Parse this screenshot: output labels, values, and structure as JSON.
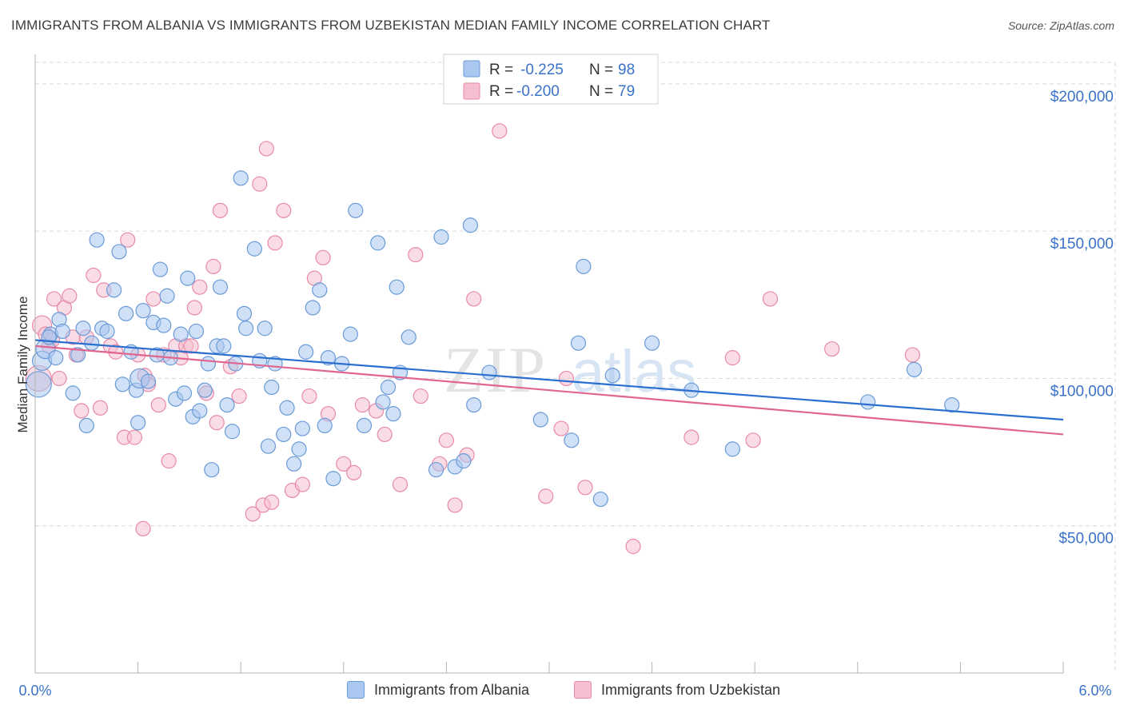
{
  "title": "IMMIGRANTS FROM ALBANIA VS IMMIGRANTS FROM UZBEKISTAN MEDIAN FAMILY INCOME CORRELATION CHART",
  "source": "Source: ZipAtlas.com",
  "watermark": {
    "zip": "ZIP",
    "atlas": "atlas"
  },
  "colors": {
    "albania_fill": "#a9c7ef",
    "albania_stroke": "#6a9bd8",
    "albania_line": "#2a6fcf",
    "uzbekistan_fill": "#f5bfd0",
    "uzbekistan_stroke": "#e88aa8",
    "uzbekistan_line": "#e0668f",
    "axis_label": "#3a72c9",
    "grid": "#d9d9d9"
  },
  "legend_top": {
    "rows": [
      {
        "r_label": "R =",
        "r_value": "-0.225",
        "n_label": "N =",
        "n_value": "98"
      },
      {
        "r_label": "R =",
        "r_value": "-0.200",
        "n_label": "N =",
        "n_value": "79"
      }
    ]
  },
  "legend_bottom": [
    "Immigrants from Albania",
    "Immigrants from Uzbekistan"
  ],
  "chart_data": {
    "type": "scatter",
    "title": "IMMIGRANTS FROM ALBANIA VS IMMIGRANTS FROM UZBEKISTAN MEDIAN FAMILY INCOME CORRELATION CHART",
    "xlabel": "",
    "ylabel": "Median Family Income",
    "xlim": [
      0,
      6
    ],
    "ylim": [
      0,
      210000
    ],
    "x_tick_labels": [
      "0.0%",
      "6.0%"
    ],
    "y_ticks": [
      50000,
      100000,
      150000,
      200000
    ],
    "y_tick_labels": [
      "$50,000",
      "$100,000",
      "$150,000",
      "$200,000"
    ],
    "grid": true,
    "legend_position": "top-center",
    "series": [
      {
        "name": "Immigrants from Albania",
        "r": -0.225,
        "n": 98,
        "trend": {
          "x": [
            0,
            6
          ],
          "y": [
            113000,
            86000
          ]
        },
        "points": [
          [
            0.02,
            98000
          ],
          [
            0.04,
            106000
          ],
          [
            0.06,
            110000
          ],
          [
            0.09,
            115000
          ],
          [
            0.12,
            107000
          ],
          [
            0.14,
            120000
          ],
          [
            0.16,
            116000
          ],
          [
            0.22,
            95000
          ],
          [
            0.25,
            108000
          ],
          [
            0.28,
            117000
          ],
          [
            0.3,
            84000
          ],
          [
            0.33,
            112000
          ],
          [
            0.36,
            147000
          ],
          [
            0.39,
            117000
          ],
          [
            0.42,
            116000
          ],
          [
            0.46,
            130000
          ],
          [
            0.49,
            143000
          ],
          [
            0.51,
            98000
          ],
          [
            0.53,
            122000
          ],
          [
            0.56,
            109000
          ],
          [
            0.59,
            96000
          ],
          [
            0.6,
            85000
          ],
          [
            0.61,
            100000
          ],
          [
            0.63,
            123000
          ],
          [
            0.66,
            99000
          ],
          [
            0.69,
            119000
          ],
          [
            0.71,
            108000
          ],
          [
            0.73,
            137000
          ],
          [
            0.75,
            118000
          ],
          [
            0.77,
            128000
          ],
          [
            0.79,
            107000
          ],
          [
            0.82,
            93000
          ],
          [
            0.85,
            115000
          ],
          [
            0.87,
            95000
          ],
          [
            0.89,
            134000
          ],
          [
            0.92,
            87000
          ],
          [
            0.94,
            116000
          ],
          [
            0.96,
            89000
          ],
          [
            0.99,
            96000
          ],
          [
            1.01,
            105000
          ],
          [
            1.03,
            69000
          ],
          [
            1.06,
            111000
          ],
          [
            1.08,
            131000
          ],
          [
            1.1,
            111000
          ],
          [
            1.12,
            91000
          ],
          [
            1.15,
            82000
          ],
          [
            1.17,
            105000
          ],
          [
            1.2,
            168000
          ],
          [
            1.22,
            122000
          ],
          [
            1.23,
            117000
          ],
          [
            1.28,
            144000
          ],
          [
            1.31,
            106000
          ],
          [
            1.34,
            117000
          ],
          [
            1.36,
            77000
          ],
          [
            1.38,
            97000
          ],
          [
            1.4,
            105000
          ],
          [
            1.45,
            81000
          ],
          [
            1.47,
            90000
          ],
          [
            1.51,
            71000
          ],
          [
            1.54,
            76000
          ],
          [
            1.56,
            83000
          ],
          [
            1.58,
            109000
          ],
          [
            1.62,
            124000
          ],
          [
            1.66,
            130000
          ],
          [
            1.69,
            84000
          ],
          [
            1.71,
            107000
          ],
          [
            1.74,
            66000
          ],
          [
            1.79,
            105000
          ],
          [
            1.84,
            115000
          ],
          [
            1.87,
            157000
          ],
          [
            1.92,
            84000
          ],
          [
            2.0,
            146000
          ],
          [
            2.03,
            92000
          ],
          [
            2.06,
            97000
          ],
          [
            2.09,
            88000
          ],
          [
            2.11,
            131000
          ],
          [
            2.13,
            102000
          ],
          [
            2.18,
            114000
          ],
          [
            2.34,
            69000
          ],
          [
            2.37,
            148000
          ],
          [
            2.45,
            70000
          ],
          [
            2.5,
            72000
          ],
          [
            2.54,
            152000
          ],
          [
            2.56,
            91000
          ],
          [
            2.65,
            102000
          ],
          [
            2.95,
            86000
          ],
          [
            3.13,
            79000
          ],
          [
            3.17,
            112000
          ],
          [
            3.2,
            138000
          ],
          [
            3.3,
            59000
          ],
          [
            3.37,
            101000
          ],
          [
            3.6,
            112000
          ],
          [
            3.83,
            96000
          ],
          [
            4.07,
            76000
          ],
          [
            4.86,
            92000
          ],
          [
            5.13,
            103000
          ],
          [
            5.35,
            91000
          ],
          [
            0.08,
            114000
          ]
        ],
        "sizes": {
          "0": 16,
          "1": 12,
          "2": 12,
          "22": 12
        }
      },
      {
        "name": "Immigrants from Uzbekistan",
        "r": -0.2,
        "n": 79,
        "trend": {
          "x": [
            0,
            6
          ],
          "y": [
            111000,
            81000
          ]
        },
        "points": [
          [
            0.02,
            100000
          ],
          [
            0.04,
            118000
          ],
          [
            0.08,
            111000
          ],
          [
            0.11,
            127000
          ],
          [
            0.14,
            100000
          ],
          [
            0.17,
            124000
          ],
          [
            0.2,
            128000
          ],
          [
            0.22,
            114000
          ],
          [
            0.24,
            108000
          ],
          [
            0.27,
            89000
          ],
          [
            0.3,
            114000
          ],
          [
            0.34,
            135000
          ],
          [
            0.38,
            90000
          ],
          [
            0.4,
            130000
          ],
          [
            0.44,
            111000
          ],
          [
            0.47,
            109000
          ],
          [
            0.52,
            80000
          ],
          [
            0.54,
            147000
          ],
          [
            0.58,
            80000
          ],
          [
            0.6,
            108000
          ],
          [
            0.63,
            49000
          ],
          [
            0.64,
            101000
          ],
          [
            0.66,
            98000
          ],
          [
            0.69,
            127000
          ],
          [
            0.72,
            91000
          ],
          [
            0.75,
            108000
          ],
          [
            0.78,
            72000
          ],
          [
            0.82,
            111000
          ],
          [
            0.85,
            107000
          ],
          [
            0.88,
            111000
          ],
          [
            0.91,
            111000
          ],
          [
            0.93,
            124000
          ],
          [
            0.96,
            131000
          ],
          [
            1.0,
            95000
          ],
          [
            1.04,
            138000
          ],
          [
            1.06,
            85000
          ],
          [
            1.08,
            157000
          ],
          [
            1.14,
            104000
          ],
          [
            1.19,
            94000
          ],
          [
            1.27,
            54000
          ],
          [
            1.31,
            166000
          ],
          [
            1.33,
            57000
          ],
          [
            1.35,
            178000
          ],
          [
            1.38,
            58000
          ],
          [
            1.4,
            146000
          ],
          [
            1.45,
            157000
          ],
          [
            1.5,
            62000
          ],
          [
            1.56,
            64000
          ],
          [
            1.6,
            94000
          ],
          [
            1.63,
            134000
          ],
          [
            1.68,
            141000
          ],
          [
            1.71,
            88000
          ],
          [
            1.8,
            71000
          ],
          [
            1.86,
            68000
          ],
          [
            1.91,
            91000
          ],
          [
            1.99,
            89000
          ],
          [
            2.04,
            81000
          ],
          [
            2.13,
            64000
          ],
          [
            2.22,
            142000
          ],
          [
            2.25,
            94000
          ],
          [
            2.36,
            71000
          ],
          [
            2.4,
            79000
          ],
          [
            2.45,
            57000
          ],
          [
            2.52,
            74000
          ],
          [
            2.56,
            127000
          ],
          [
            2.71,
            184000
          ],
          [
            2.98,
            60000
          ],
          [
            3.07,
            83000
          ],
          [
            3.1,
            100000
          ],
          [
            3.21,
            63000
          ],
          [
            3.49,
            43000
          ],
          [
            3.83,
            80000
          ],
          [
            4.07,
            107000
          ],
          [
            4.19,
            79000
          ],
          [
            4.29,
            127000
          ],
          [
            4.65,
            110000
          ],
          [
            5.12,
            108000
          ],
          [
            0.06,
            115000
          ],
          [
            0.1,
            113000
          ]
        ],
        "sizes": {
          "0": 16,
          "1": 12
        }
      }
    ]
  }
}
